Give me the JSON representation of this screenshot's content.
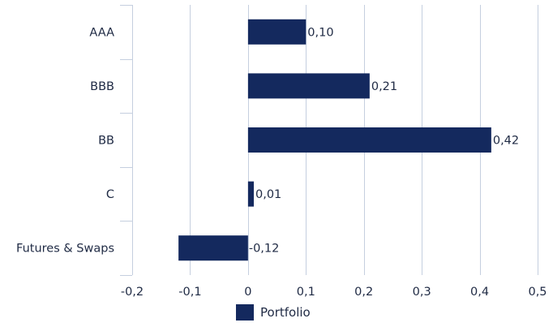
{
  "chart_data": {
    "type": "bar",
    "orientation": "horizontal",
    "title": "",
    "xlabel": "",
    "ylabel": "",
    "categories": [
      "AAA",
      "BBB",
      "BB",
      "C",
      "Futures & Swaps"
    ],
    "series": [
      {
        "name": "Portfolio",
        "values": [
          0.1,
          0.21,
          0.42,
          0.01,
          -0.12
        ],
        "labels": [
          "0,10",
          "0,21",
          "0,42",
          "0,01",
          "-0,12"
        ],
        "color": "#14295e"
      }
    ],
    "xlim": [
      -0.2,
      0.5
    ],
    "x_ticks": [
      -0.2,
      -0.1,
      0,
      0.1,
      0.2,
      0.3,
      0.4,
      0.5
    ],
    "x_tick_labels": [
      "-0,2",
      "-0,1",
      "0",
      "0,1",
      "0,2",
      "0,3",
      "0,4",
      "0,5"
    ],
    "grid": true,
    "legend_position": "bottom",
    "colors": {
      "bar": "#14295e",
      "grid": "#c5cfdf",
      "text": "#1f2a44"
    }
  }
}
